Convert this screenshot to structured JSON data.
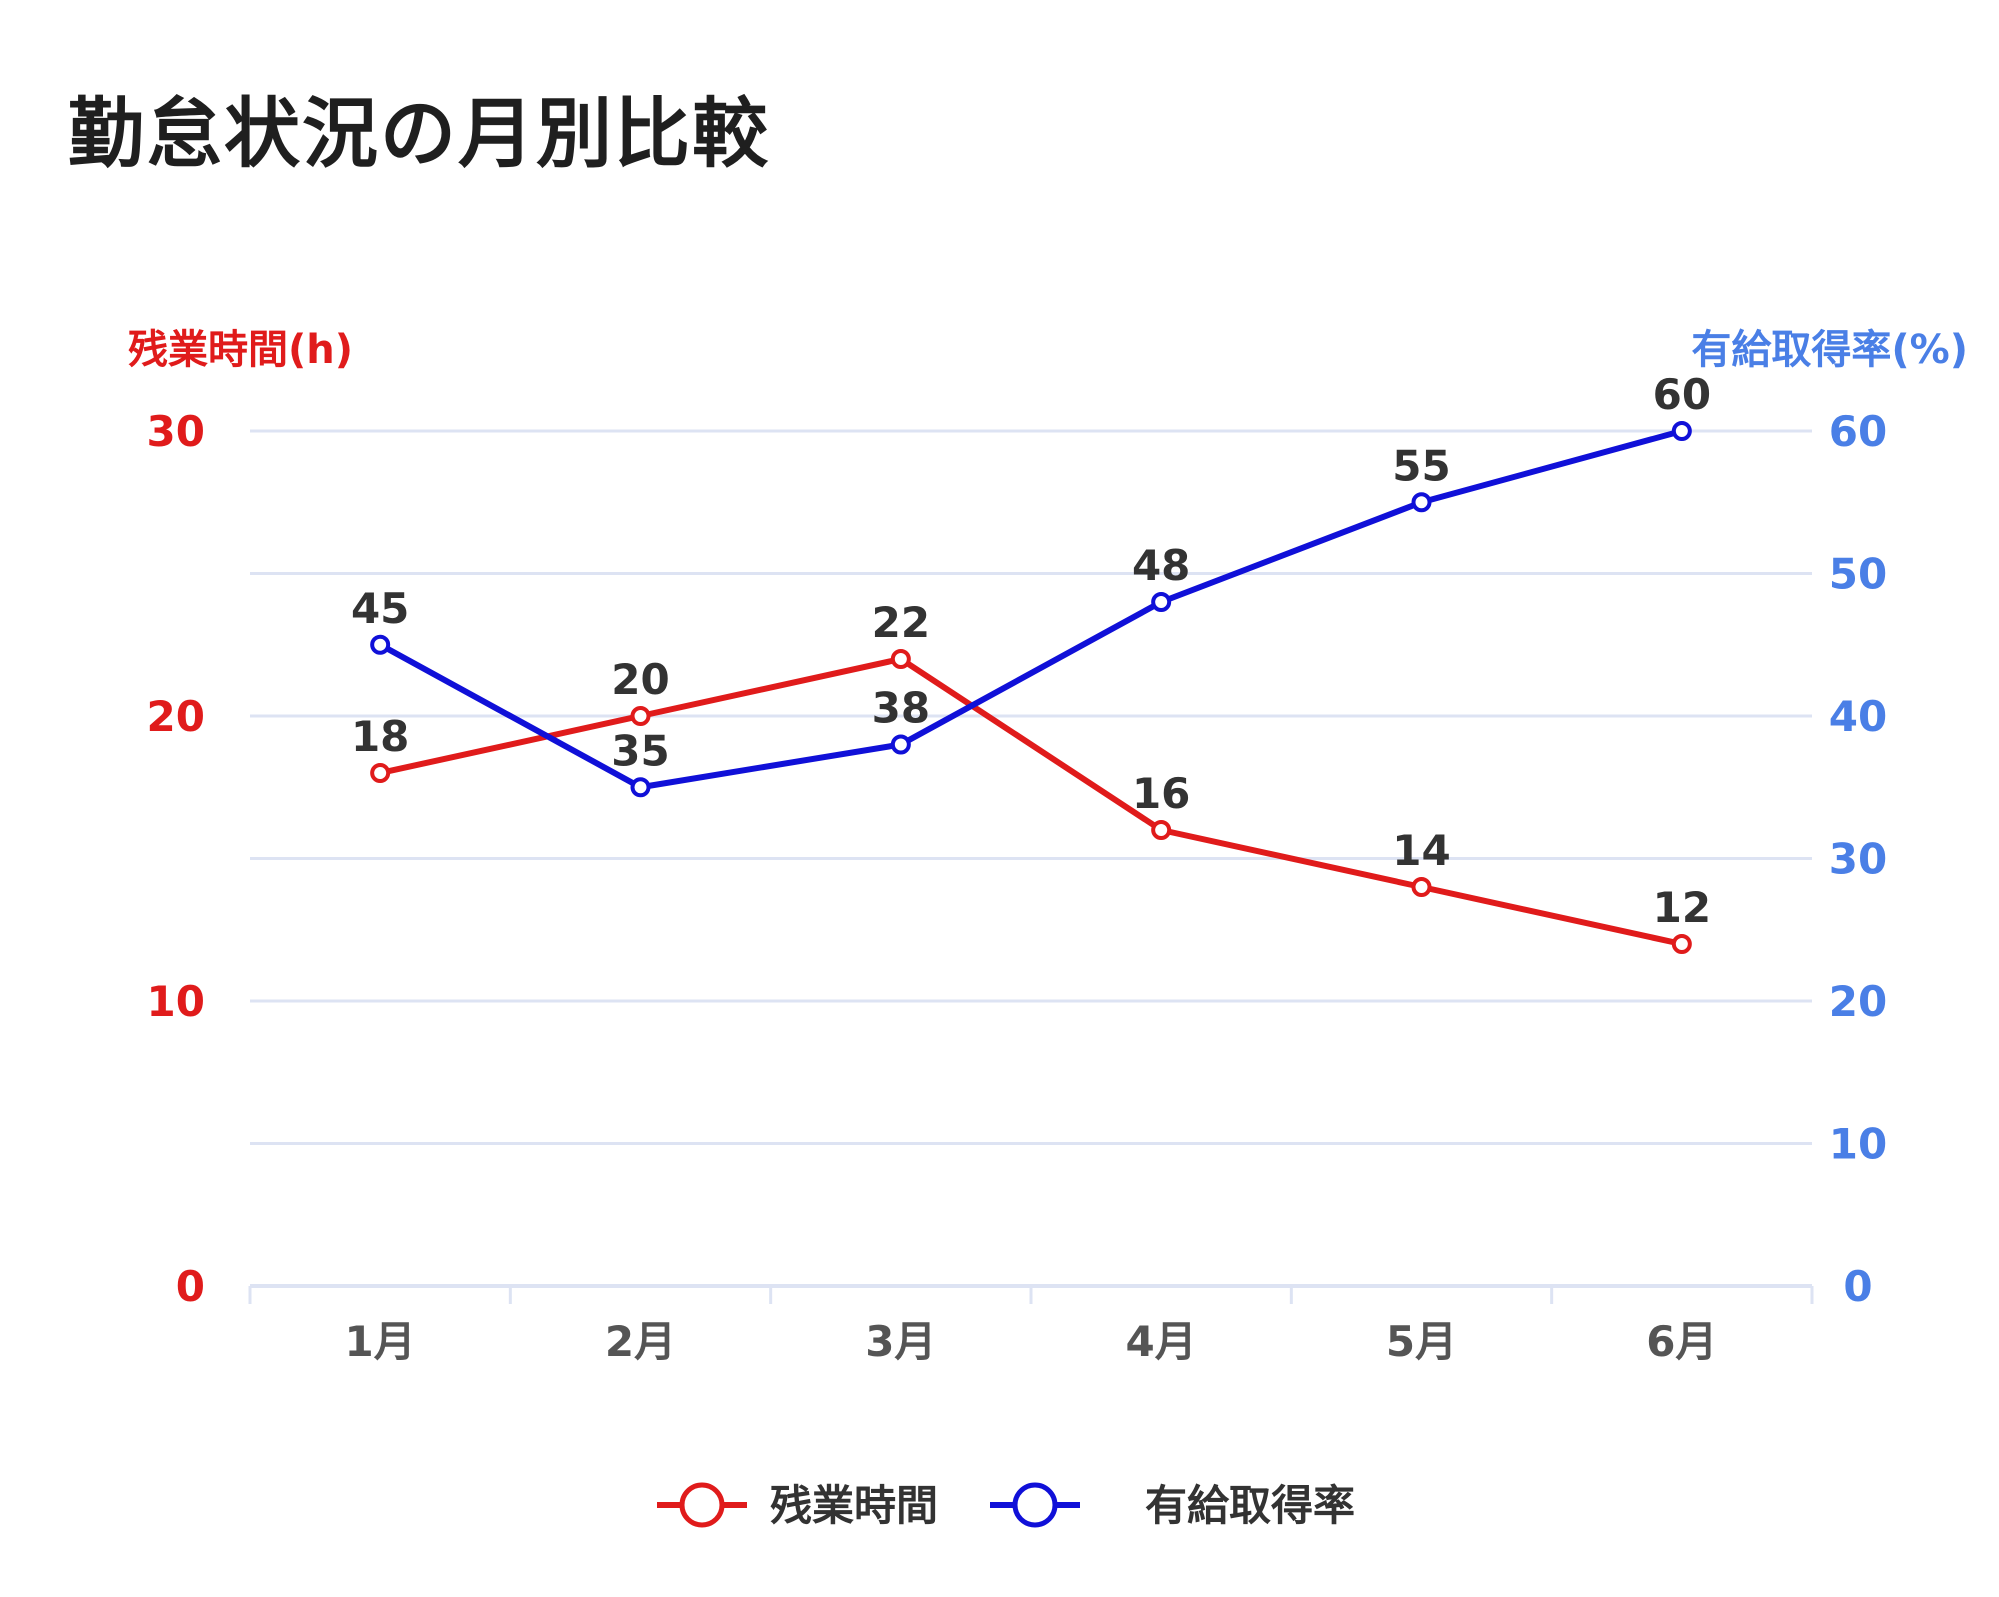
{
  "title": "勤怠状況の月別比較",
  "colors": {
    "overtime": "#e01b1b",
    "leave": "#1010d8",
    "left_axis": "#e01b1b",
    "right_axis": "#4a7fe6",
    "grid": "#dde3f3",
    "text": "#333333",
    "xtick": "#555555"
  },
  "chart_data": {
    "type": "line",
    "categories": [
      "1月",
      "2月",
      "3月",
      "4月",
      "5月",
      "6月"
    ],
    "series": [
      {
        "name": "残業時間",
        "axis": "left",
        "values": [
          18,
          20,
          22,
          16,
          14,
          12
        ]
      },
      {
        "name": "有給取得率",
        "axis": "right",
        "values": [
          45,
          35,
          38,
          48,
          55,
          60
        ]
      }
    ],
    "y_left": {
      "label": "残業時間(h)",
      "ylim": [
        0,
        30
      ],
      "ticks": [
        "0",
        "10",
        "20",
        "30"
      ]
    },
    "y_right": {
      "label": "有給取得率(%)",
      "ylim": [
        0,
        60
      ],
      "ticks": [
        "0",
        "10",
        "20",
        "30",
        "40",
        "50",
        "60"
      ]
    },
    "grid": true,
    "data_labels": true,
    "legend": {
      "position": "bottom",
      "items": [
        "残業時間",
        "有給取得率"
      ]
    }
  }
}
